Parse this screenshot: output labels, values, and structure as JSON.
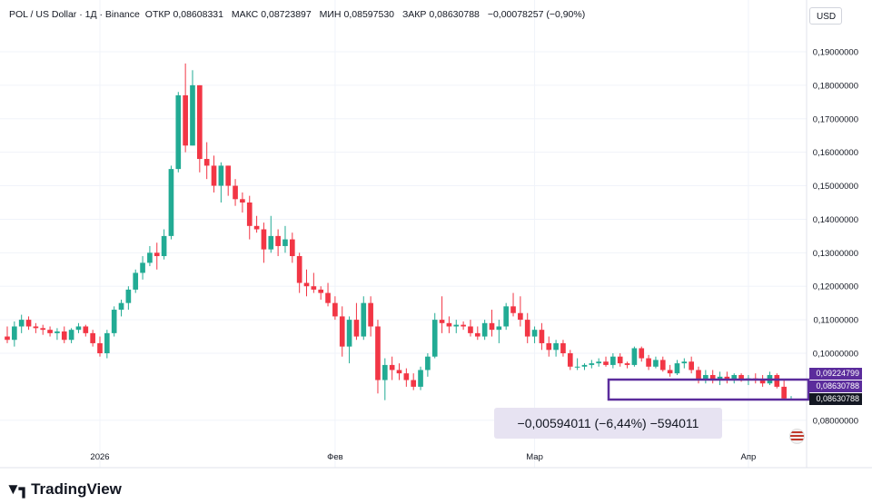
{
  "header": {
    "symbol": "POL / US Dollar · 1Д · Binance",
    "open_label": "ОТКР",
    "open_value": "0,08608331",
    "high_label": "МАКС",
    "high_value": "0,08723897",
    "low_label": "МИН",
    "low_value": "0,08597530",
    "close_label": "ЗАКР",
    "close_value": "0,08630788",
    "change": "−0,00078257 (−0,90%)"
  },
  "currency_button": "USD",
  "measure_label": "−0,00594011 (−6,44%) −594011",
  "price_tags": {
    "upper": "0,09224799",
    "middle": "0,08630788",
    "last": "0,08630788"
  },
  "brand": "TradingView",
  "colors": {
    "up": "#22ab94",
    "down": "#f23645",
    "measure": "#5b2c9c",
    "last_tag": "#131722"
  },
  "chart_data": {
    "type": "candlestick",
    "y_ticks": [
      "0,19000000",
      "0,18000000",
      "0,17000000",
      "0,16000000",
      "0,15000000",
      "0,14000000",
      "0,13000000",
      "0,12000000",
      "0,11000000",
      "0,10000000",
      "0,08000000"
    ],
    "x_ticks": [
      "2026",
      "Фев",
      "Мар",
      "Апр"
    ],
    "ylim": [
      0.075,
      0.196
    ],
    "grid": true,
    "ohlc": [
      [
        0.105,
        0.108,
        0.103,
        0.104
      ],
      [
        0.104,
        0.1095,
        0.102,
        0.108
      ],
      [
        0.108,
        0.1115,
        0.106,
        0.11
      ],
      [
        0.11,
        0.111,
        0.107,
        0.108
      ],
      [
        0.108,
        0.109,
        0.106,
        0.1075
      ],
      [
        0.1075,
        0.1085,
        0.1055,
        0.107
      ],
      [
        0.107,
        0.108,
        0.105,
        0.106
      ],
      [
        0.106,
        0.1075,
        0.104,
        0.1065
      ],
      [
        0.1065,
        0.108,
        0.103,
        0.104
      ],
      [
        0.104,
        0.1075,
        0.103,
        0.107
      ],
      [
        0.107,
        0.109,
        0.106,
        0.108
      ],
      [
        0.108,
        0.1085,
        0.105,
        0.106
      ],
      [
        0.106,
        0.107,
        0.102,
        0.103
      ],
      [
        0.103,
        0.105,
        0.099,
        0.1
      ],
      [
        0.1,
        0.107,
        0.0985,
        0.106
      ],
      [
        0.106,
        0.114,
        0.105,
        0.113
      ],
      [
        0.113,
        0.116,
        0.111,
        0.115
      ],
      [
        0.115,
        0.12,
        0.113,
        0.119
      ],
      [
        0.119,
        0.125,
        0.118,
        0.124
      ],
      [
        0.124,
        0.129,
        0.122,
        0.127
      ],
      [
        0.127,
        0.132,
        0.126,
        0.13
      ],
      [
        0.13,
        0.133,
        0.125,
        0.129
      ],
      [
        0.129,
        0.137,
        0.128,
        0.135
      ],
      [
        0.135,
        0.156,
        0.134,
        0.155
      ],
      [
        0.155,
        0.178,
        0.154,
        0.177
      ],
      [
        0.177,
        0.1865,
        0.16,
        0.162
      ],
      [
        0.162,
        0.1845,
        0.162,
        0.18
      ],
      [
        0.18,
        0.18,
        0.154,
        0.158
      ],
      [
        0.158,
        0.163,
        0.152,
        0.156
      ],
      [
        0.156,
        0.159,
        0.148,
        0.15
      ],
      [
        0.15,
        0.157,
        0.145,
        0.156
      ],
      [
        0.156,
        0.156,
        0.147,
        0.15
      ],
      [
        0.15,
        0.152,
        0.144,
        0.146
      ],
      [
        0.146,
        0.148,
        0.142,
        0.145
      ],
      [
        0.145,
        0.147,
        0.134,
        0.138
      ],
      [
        0.138,
        0.141,
        0.136,
        0.137
      ],
      [
        0.137,
        0.139,
        0.127,
        0.131
      ],
      [
        0.131,
        0.141,
        0.13,
        0.135
      ],
      [
        0.135,
        0.137,
        0.129,
        0.132
      ],
      [
        0.132,
        0.138,
        0.13,
        0.134
      ],
      [
        0.134,
        0.136,
        0.127,
        0.129
      ],
      [
        0.129,
        0.13,
        0.118,
        0.121
      ],
      [
        0.121,
        0.125,
        0.117,
        0.12
      ],
      [
        0.12,
        0.124,
        0.118,
        0.119
      ],
      [
        0.119,
        0.12,
        0.116,
        0.118
      ],
      [
        0.118,
        0.121,
        0.114,
        0.115
      ],
      [
        0.115,
        0.117,
        0.11,
        0.111
      ],
      [
        0.111,
        0.114,
        0.099,
        0.102
      ],
      [
        0.102,
        0.111,
        0.097,
        0.11
      ],
      [
        0.11,
        0.115,
        0.104,
        0.105
      ],
      [
        0.105,
        0.117,
        0.104,
        0.115
      ],
      [
        0.115,
        0.117,
        0.105,
        0.108
      ],
      [
        0.108,
        0.11,
        0.088,
        0.092
      ],
      [
        0.092,
        0.0985,
        0.086,
        0.0965
      ],
      [
        0.0965,
        0.099,
        0.092,
        0.095
      ],
      [
        0.095,
        0.097,
        0.092,
        0.094
      ],
      [
        0.094,
        0.0955,
        0.09,
        0.092
      ],
      [
        0.092,
        0.094,
        0.089,
        0.09
      ],
      [
        0.09,
        0.096,
        0.089,
        0.095
      ],
      [
        0.095,
        0.1,
        0.093,
        0.099
      ],
      [
        0.099,
        0.112,
        0.0985,
        0.11
      ],
      [
        0.11,
        0.117,
        0.106,
        0.109
      ],
      [
        0.109,
        0.111,
        0.106,
        0.108
      ],
      [
        0.108,
        0.11,
        0.106,
        0.1085
      ],
      [
        0.1085,
        0.1095,
        0.107,
        0.108
      ],
      [
        0.108,
        0.11,
        0.105,
        0.106
      ],
      [
        0.106,
        0.108,
        0.104,
        0.105
      ],
      [
        0.105,
        0.11,
        0.104,
        0.109
      ],
      [
        0.109,
        0.113,
        0.105,
        0.107
      ],
      [
        0.107,
        0.11,
        0.103,
        0.108
      ],
      [
        0.108,
        0.115,
        0.107,
        0.114
      ],
      [
        0.114,
        0.118,
        0.111,
        0.112
      ],
      [
        0.112,
        0.117,
        0.108,
        0.11
      ],
      [
        0.11,
        0.112,
        0.103,
        0.105
      ],
      [
        0.105,
        0.108,
        0.103,
        0.107
      ],
      [
        0.107,
        0.109,
        0.101,
        0.103
      ],
      [
        0.103,
        0.105,
        0.099,
        0.101
      ],
      [
        0.101,
        0.104,
        0.099,
        0.103
      ],
      [
        0.103,
        0.104,
        0.099,
        0.1
      ],
      [
        0.1,
        0.101,
        0.095,
        0.096
      ],
      [
        0.096,
        0.0985,
        0.095,
        0.096
      ],
      [
        0.096,
        0.097,
        0.095,
        0.0965
      ],
      [
        0.0965,
        0.098,
        0.0955,
        0.097
      ],
      [
        0.097,
        0.0985,
        0.096,
        0.0975
      ],
      [
        0.0975,
        0.099,
        0.096,
        0.0965
      ],
      [
        0.0965,
        0.1,
        0.0955,
        0.099
      ],
      [
        0.099,
        0.1,
        0.096,
        0.097
      ],
      [
        0.097,
        0.0975,
        0.0955,
        0.0965
      ],
      [
        0.0965,
        0.102,
        0.096,
        0.1015
      ],
      [
        0.1015,
        0.102,
        0.0975,
        0.0985
      ],
      [
        0.0985,
        0.0995,
        0.095,
        0.096
      ],
      [
        0.096,
        0.099,
        0.0955,
        0.098
      ],
      [
        0.098,
        0.099,
        0.0945,
        0.095
      ],
      [
        0.095,
        0.0965,
        0.093,
        0.094
      ],
      [
        0.094,
        0.098,
        0.0935,
        0.097
      ],
      [
        0.097,
        0.0985,
        0.0955,
        0.0975
      ],
      [
        0.0975,
        0.099,
        0.094,
        0.095
      ],
      [
        0.095,
        0.096,
        0.091,
        0.092
      ],
      [
        0.092,
        0.095,
        0.091,
        0.0935
      ],
      [
        0.0935,
        0.095,
        0.091,
        0.092
      ],
      [
        0.092,
        0.0945,
        0.0905,
        0.093
      ],
      [
        0.093,
        0.0945,
        0.091,
        0.092
      ],
      [
        0.092,
        0.094,
        0.091,
        0.0935
      ],
      [
        0.0935,
        0.094,
        0.0915,
        0.092
      ],
      [
        0.092,
        0.0935,
        0.0905,
        0.0925
      ],
      [
        0.0925,
        0.094,
        0.091,
        0.092
      ],
      [
        0.092,
        0.0935,
        0.09,
        0.091
      ],
      [
        0.091,
        0.0945,
        0.0905,
        0.0935
      ],
      [
        0.0935,
        0.094,
        0.0895,
        0.09
      ],
      [
        0.09,
        0.092,
        0.086,
        0.0865
      ],
      [
        0.08608,
        0.08724,
        0.08598,
        0.08631
      ]
    ]
  }
}
